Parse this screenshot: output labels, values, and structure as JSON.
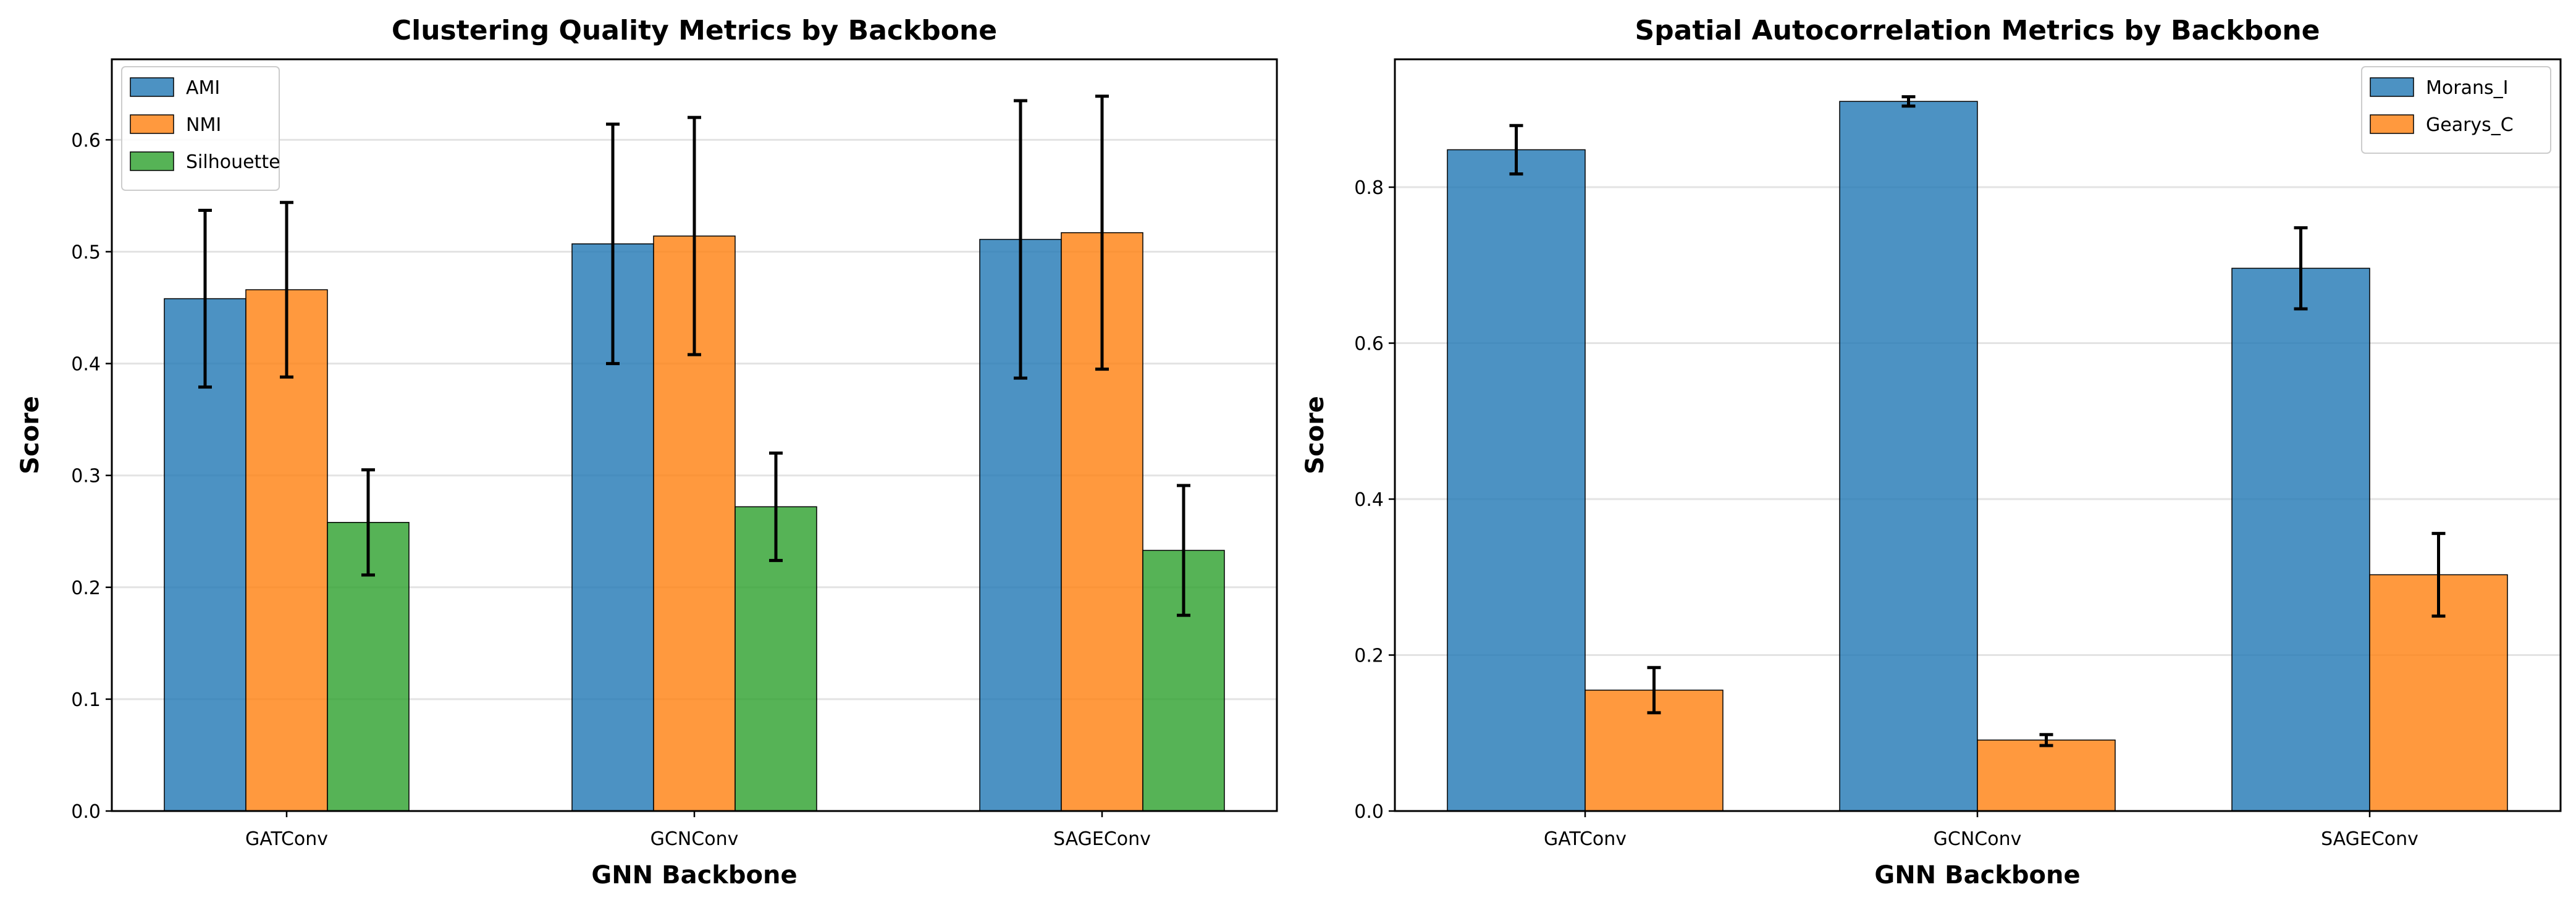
{
  "chart_data": [
    {
      "type": "bar",
      "title": "Clustering Quality Metrics by Backbone",
      "xlabel": "GNN Backbone",
      "ylabel": "Score",
      "categories": [
        "GATConv",
        "GCNConv",
        "SAGEConv"
      ],
      "ylim": [
        0,
        0.672
      ],
      "yticks": [
        "0.0",
        "0.1",
        "0.2",
        "0.3",
        "0.4",
        "0.5",
        "0.6"
      ],
      "grid": "horizontal",
      "legend_position": "top-left",
      "series": [
        {
          "name": "AMI",
          "color": "#1f77b4",
          "values": [
            0.458,
            0.507,
            0.511
          ],
          "errors": [
            0.079,
            0.107,
            0.124
          ]
        },
        {
          "name": "NMI",
          "color": "#ff7f0e",
          "values": [
            0.466,
            0.514,
            0.517
          ],
          "errors": [
            0.078,
            0.106,
            0.122
          ]
        },
        {
          "name": "Silhouette",
          "color": "#2ca02c",
          "values": [
            0.258,
            0.272,
            0.233
          ],
          "errors": [
            0.047,
            0.048,
            0.058
          ]
        }
      ]
    },
    {
      "type": "bar",
      "title": "Spatial Autocorrelation Metrics by Backbone",
      "xlabel": "GNN Backbone",
      "ylabel": "Score",
      "categories": [
        "GATConv",
        "GCNConv",
        "SAGEConv"
      ],
      "ylim": [
        0,
        0.964
      ],
      "yticks": [
        "0.0",
        "0.2",
        "0.4",
        "0.6",
        "0.8"
      ],
      "grid": "horizontal",
      "legend_position": "top-right",
      "series": [
        {
          "name": "Morans_I",
          "color": "#1f77b4",
          "values": [
            0.848,
            0.91,
            0.696
          ],
          "errors": [
            0.031,
            0.006,
            0.052
          ]
        },
        {
          "name": "Gearys_C",
          "color": "#ff7f0e",
          "values": [
            0.155,
            0.091,
            0.303
          ],
          "errors": [
            0.029,
            0.007,
            0.053
          ]
        }
      ]
    }
  ]
}
